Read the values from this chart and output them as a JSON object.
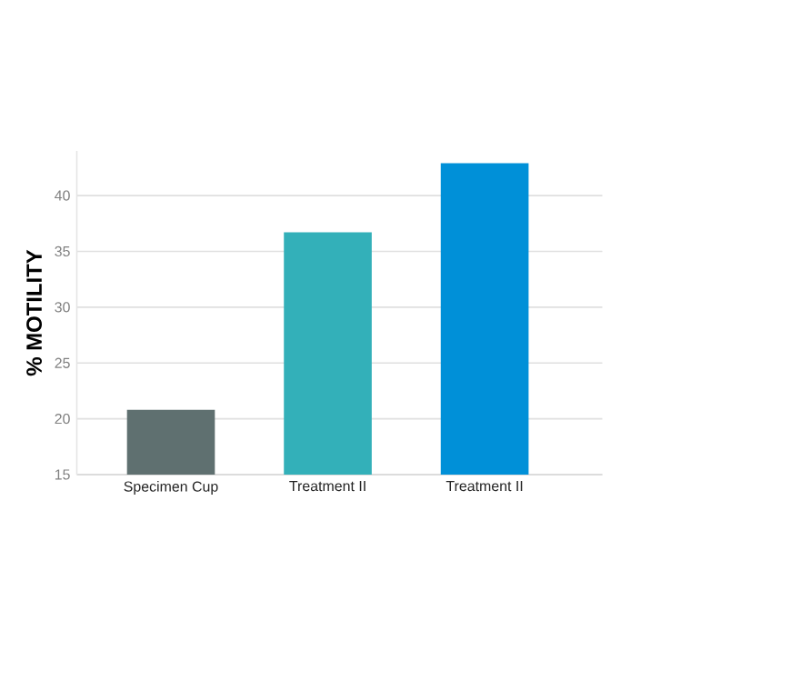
{
  "chart_data": {
    "type": "bar",
    "ylabel": "% MOTILITY",
    "categories": [
      "Specimen Cup",
      "Treatment II",
      "Treatment II"
    ],
    "values": [
      20.8,
      36.7,
      42.9
    ],
    "colors": [
      "#5f7070",
      "#33b0b9",
      "#0090d8"
    ],
    "ylim": [
      15,
      44
    ],
    "yticks": [
      15,
      20,
      25,
      30,
      35,
      40
    ],
    "grid": "y"
  }
}
